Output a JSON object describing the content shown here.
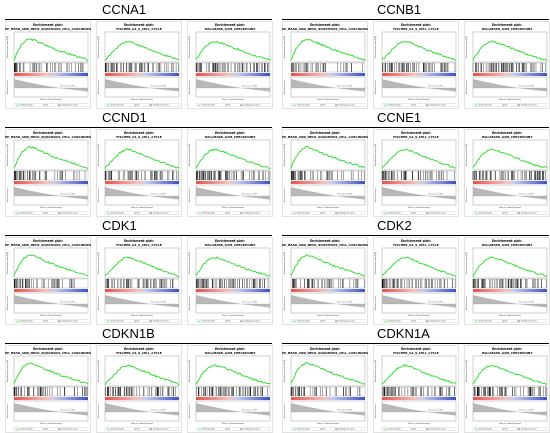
{
  "colors": {
    "curve": "#22dd22",
    "positive": "#e8504a",
    "negative": "#3a50c8",
    "hit": "#000000",
    "metric": "#b8b8b8"
  },
  "plot_header": "Enrichment plot:",
  "panel_text": {
    "y_es": "Enrichment score (ES)",
    "y_metric": "Ranked list metric",
    "x_label": "Rank in Ordered Dataset",
    "zero_cross": "Zero cross at 7965",
    "legend_es": "Enrichment profile",
    "legend_hits": "Hits",
    "legend_metric": "Ranking metric scores"
  },
  "groups": [
    {
      "gene": "CCNA1",
      "plots": [
        "WP_HEAD_AND_NECK_SQUAMOUS_CELL_CARCINOMA",
        "FISCHER_G1_S_CELL_CYCLE",
        "HALLMARK_G2M_CHECKPOINT"
      ]
    },
    {
      "gene": "CCNB1",
      "plots": [
        "WP_HEAD_AND_NECK_SQUAMOUS_CELL_CARCINOMA",
        "FISCHER_G1_S_CELL_CYCLE",
        "HALLMARK_G2M_CHECKPOINT"
      ]
    },
    {
      "gene": "CCND1",
      "plots": [
        "WP_HEAD_AND_NECK_SQUAMOUS_CELL_CARCINOMA",
        "FISCHER_G1_S_CELL_CYCLE",
        "HALLMARK_G2M_CHECKPOINT"
      ]
    },
    {
      "gene": "CCNE1",
      "plots": [
        "WP_HEAD_AND_NECK_SQUAMOUS_CELL_CARCINOMA",
        "FISCHER_G1_S_CELL_CYCLE",
        "HALLMARK_G2M_CHECKPOINT"
      ]
    },
    {
      "gene": "CDK1",
      "plots": [
        "WP_HEAD_AND_NECK_SQUAMOUS_CELL_CARCINOMA",
        "FISCHER_G1_S_CELL_CYCLE",
        "HALLMARK_G2M_CHECKPOINT"
      ]
    },
    {
      "gene": "CDK2",
      "plots": [
        "WP_HEAD_AND_NECK_SQUAMOUS_CELL_CARCINOMA",
        "FISCHER_G1_S_CELL_CYCLE",
        "HALLMARK_G2M_CHECKPOINT"
      ]
    },
    {
      "gene": "CDKN1B",
      "plots": [
        "WP_HEAD_AND_NECK_SQUAMOUS_CELL_CARCINOMA",
        "FISCHER_G1_S_CELL_CYCLE",
        "HALLMARK_G2M_CHECKPOINT"
      ]
    },
    {
      "gene": "CDKN1A",
      "plots": [
        "WP_HEAD_AND_NECK_SQUAMOUS_CELL_CARCINOMA",
        "FISCHER_G1_S_CELL_CYCLE",
        "HALLMARK_G2M_CHECKPOINT"
      ]
    }
  ],
  "chart_data": {
    "type": "line",
    "description_kind": "GSEA enrichment plots, 8 genes x 3 gene sets",
    "title": "",
    "xlabel": "Rank in Ordered Dataset",
    "ylabel": "Enrichment score (ES)",
    "x": [
      0,
      0.05,
      0.1,
      0.15,
      0.2,
      0.25,
      0.3,
      0.35,
      0.4,
      0.45,
      0.5,
      0.55,
      0.6,
      0.65,
      0.7,
      0.75,
      0.8,
      0.85,
      0.9,
      0.95,
      1.0
    ],
    "profiles": {
      "early_peak": [
        0,
        0.28,
        0.5,
        0.62,
        0.7,
        0.68,
        0.64,
        0.58,
        0.52,
        0.47,
        0.42,
        0.37,
        0.32,
        0.28,
        0.24,
        0.2,
        0.16,
        0.12,
        0.08,
        0.04,
        0
      ],
      "mid_peak": [
        0,
        0.12,
        0.25,
        0.38,
        0.5,
        0.58,
        0.62,
        0.6,
        0.56,
        0.5,
        0.45,
        0.4,
        0.35,
        0.3,
        0.25,
        0.2,
        0.16,
        0.12,
        0.08,
        0.04,
        0
      ],
      "broad_peak": [
        0,
        0.2,
        0.38,
        0.5,
        0.58,
        0.62,
        0.6,
        0.56,
        0.52,
        0.46,
        0.42,
        0.37,
        0.32,
        0.27,
        0.22,
        0.18,
        0.14,
        0.1,
        0.06,
        0.03,
        0
      ]
    },
    "series": [
      {
        "gene": "CCNA1",
        "set": "WP_HEAD_AND_NECK_SQUAMOUS_CELL_CARCINOMA",
        "profile": "early_peak"
      },
      {
        "gene": "CCNA1",
        "set": "FISCHER_G1_S_CELL_CYCLE",
        "profile": "mid_peak"
      },
      {
        "gene": "CCNA1",
        "set": "HALLMARK_G2M_CHECKPOINT",
        "profile": "broad_peak"
      }
    ],
    "grid": false
  }
}
